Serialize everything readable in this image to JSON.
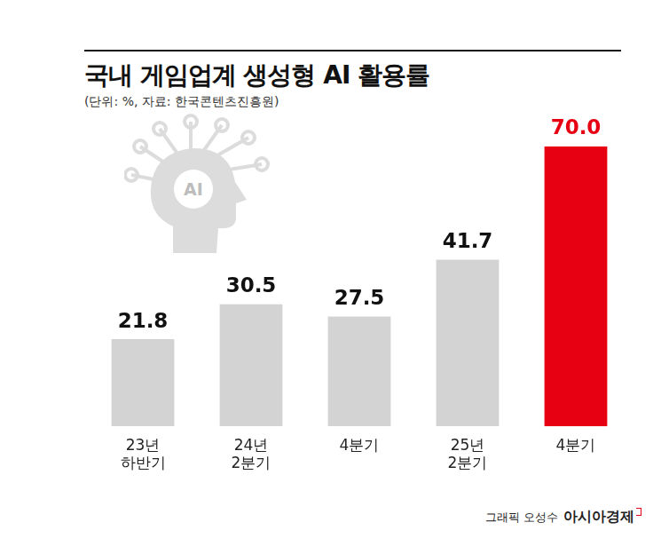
{
  "chart_data": {
    "type": "bar",
    "title": "국내 게임업계 생성형 AI 활용률",
    "subtitle": "(단위: %, 자료: 한국콘텐츠진흥원)",
    "icon_text": "AI",
    "categories": [
      "23년 하반기",
      "24년 2분기",
      "4분기",
      "25년 2분기",
      "4분기"
    ],
    "values": [
      21.8,
      30.5,
      27.5,
      41.7,
      70.0
    ],
    "value_labels": [
      "21.8",
      "30.5",
      "27.5",
      "41.7",
      "70.0"
    ],
    "colors": [
      "#d3d3d3",
      "#d3d3d3",
      "#d3d3d3",
      "#d3d3d3",
      "#e60012"
    ],
    "data_labels": true,
    "ylim": [
      0,
      80
    ],
    "grid": false,
    "tick_labels": "x",
    "credit": "그래픽 오성수",
    "publisher": "아시아경제"
  }
}
